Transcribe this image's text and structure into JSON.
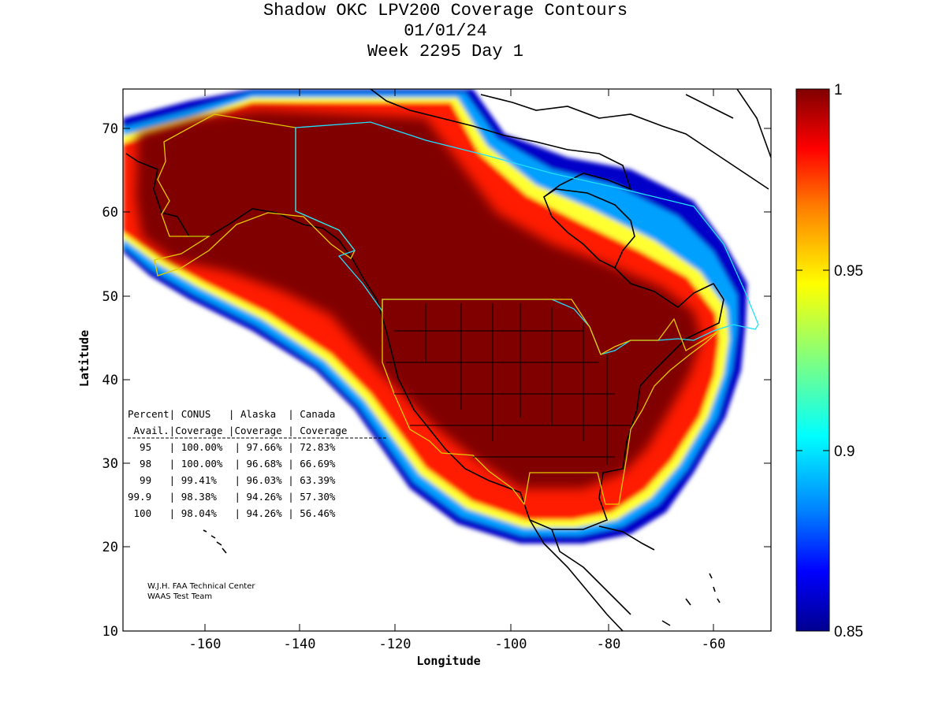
{
  "title": {
    "line1": "Shadow OKC LPV200 Coverage Contours",
    "line2": "01/01/24",
    "line3": "Week 2295 Day 1"
  },
  "axes": {
    "xlabel": "Longitude",
    "ylabel": "Latitude",
    "x_ticks": [
      "-160",
      "-140",
      "-120",
      "-100",
      "-80",
      "-60"
    ],
    "y_ticks": [
      "10",
      "20",
      "30",
      "40",
      "50",
      "60",
      "70"
    ]
  },
  "colorbar": {
    "labels": [
      "1",
      "0.95",
      "0.9",
      "0.85"
    ],
    "colormap": [
      "#00008f",
      "#0000ff",
      "#0080ff",
      "#00ffff",
      "#80ff80",
      "#ffff00",
      "#ff8000",
      "#ff0000",
      "#800000"
    ]
  },
  "stats_table": {
    "header1": "Percent| CONUS   | Alaska  | Canada",
    "header2": " Avail.|Coverage |Coverage | Coverage",
    "rows": [
      "  95   | 100.00%  | 97.66% | 72.83%",
      "  98   | 100.00%  | 96.68% | 66.69%",
      "  99   | 99.41%   | 96.03% | 63.39%",
      "99.9   | 98.38%   | 94.26% | 57.30%",
      " 100   | 98.04%   | 94.26% | 56.46%"
    ]
  },
  "credits": {
    "line1": "W.J.H. FAA Technical Center",
    "line2": "WAAS Test Team"
  },
  "chart_data": {
    "type": "heatmap",
    "title": "Shadow OKC LPV200 Coverage Contours",
    "subtitle": [
      "01/01/24",
      "Week 2295 Day 1"
    ],
    "xlabel": "Longitude",
    "ylabel": "Latitude",
    "xlim": [
      -175,
      -50
    ],
    "ylim": [
      10,
      75
    ],
    "color_range": [
      0.85,
      1.0
    ],
    "coverage_summary": [
      {
        "percent_avail": "95",
        "conus": "100.00%",
        "alaska": "97.66%",
        "canada": "72.83%"
      },
      {
        "percent_avail": "98",
        "conus": "100.00%",
        "alaska": "96.68%",
        "canada": "66.69%"
      },
      {
        "percent_avail": "99",
        "conus": "99.41%",
        "alaska": "96.03%",
        "canada": "63.39%"
      },
      {
        "percent_avail": "99.9",
        "conus": "98.38%",
        "alaska": "94.26%",
        "canada": "57.30%"
      },
      {
        "percent_avail": "100",
        "conus": "98.04%",
        "alaska": "94.26%",
        "canada": "56.46%"
      }
    ]
  }
}
